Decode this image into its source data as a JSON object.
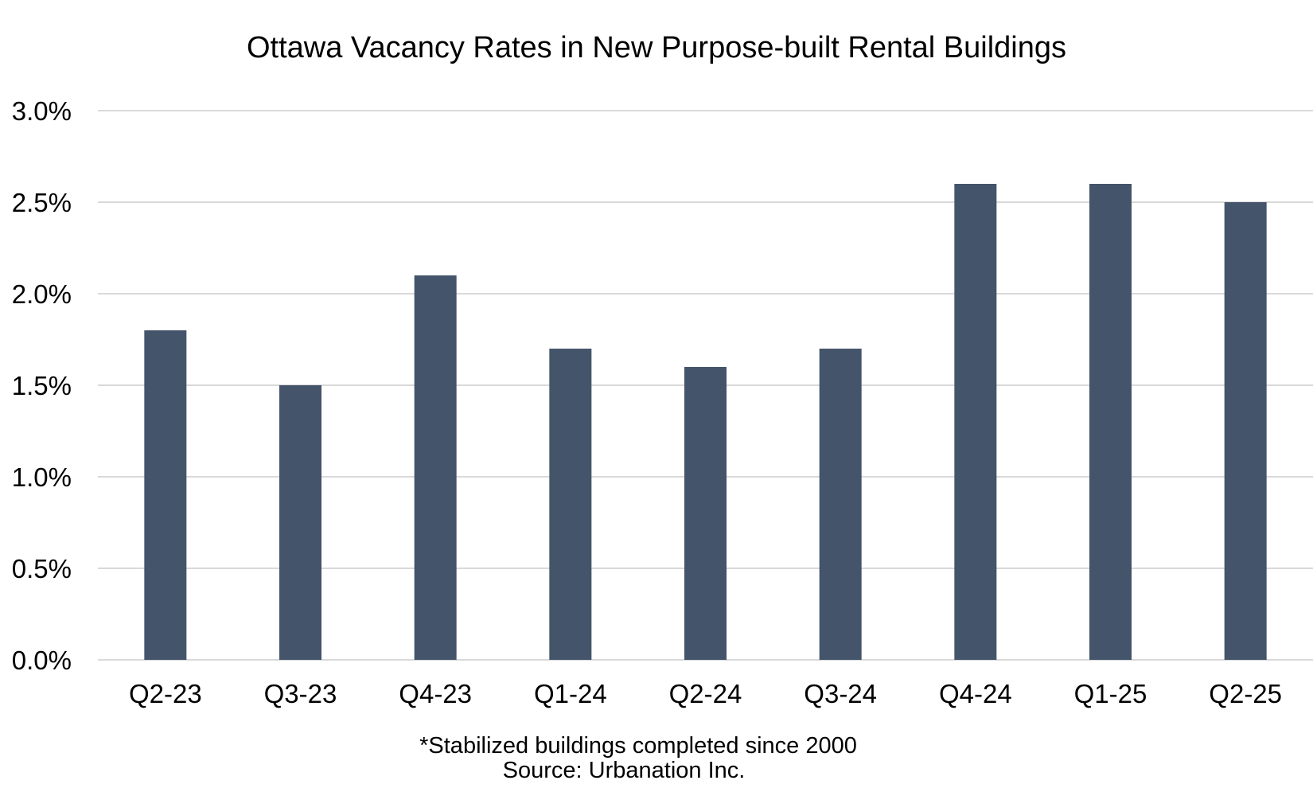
{
  "chart_data": {
    "type": "bar",
    "title": "Ottawa Vacancy Rates in New Purpose-built Rental Buildings",
    "categories": [
      "Q2-23",
      "Q3-23",
      "Q4-23",
      "Q1-24",
      "Q2-24",
      "Q3-24",
      "Q4-24",
      "Q1-25",
      "Q2-25"
    ],
    "values": [
      1.8,
      1.5,
      2.1,
      1.7,
      1.6,
      1.7,
      2.6,
      2.6,
      2.5
    ],
    "unit": "%",
    "ylim": [
      0,
      3.0
    ],
    "yticks": [
      0.0,
      0.5,
      1.0,
      1.5,
      2.0,
      2.5,
      3.0
    ],
    "ytick_labels": [
      "0.0%",
      "0.5%",
      "1.0%",
      "1.5%",
      "2.0%",
      "2.5%",
      "3.0%"
    ],
    "xlabel": "",
    "ylabel": "",
    "grid": true,
    "legend": "none",
    "bar_color": "#44546A",
    "grid_color": "#D9D9D9",
    "footnotes": [
      "*Stabilized buildings completed since 2000",
      "Source: Urbanation Inc."
    ]
  }
}
